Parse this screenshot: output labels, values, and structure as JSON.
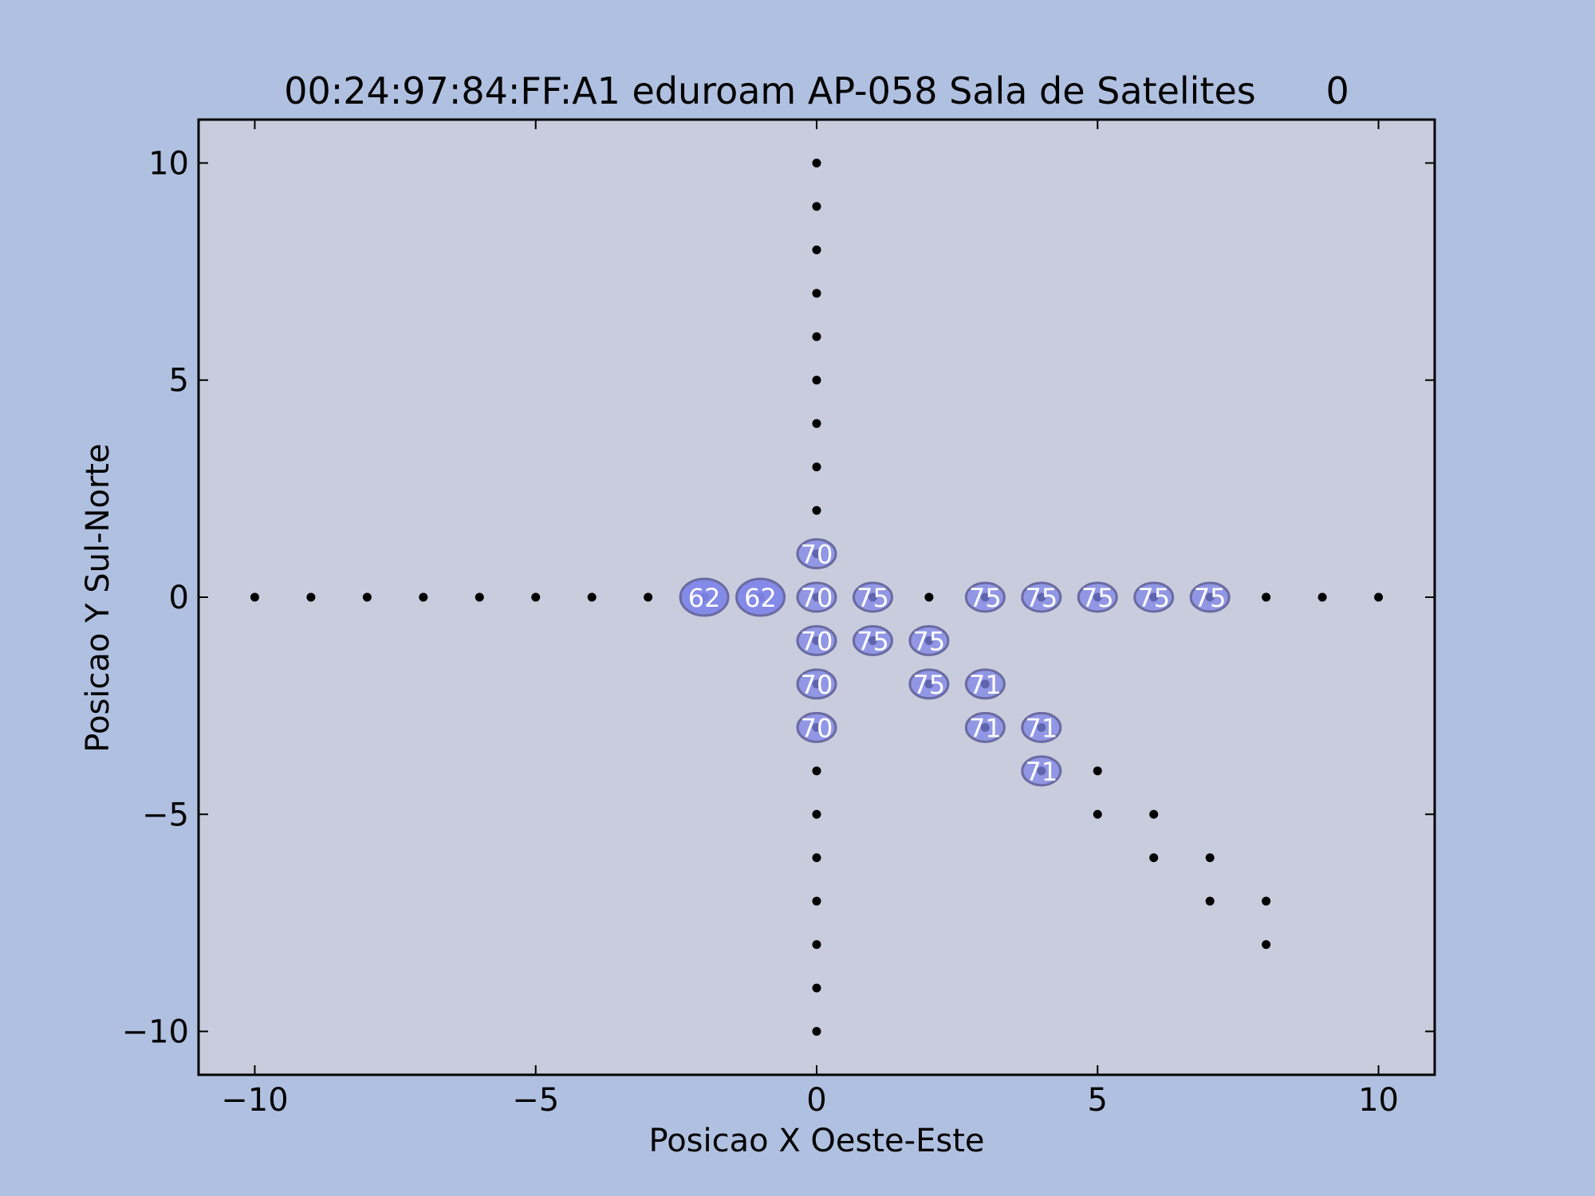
{
  "chart_data": {
    "type": "scatter",
    "title": "00:24:97:84:FF:A1 eduroam AP-058 Sala de Satelites      0",
    "xlabel": "Posicao X Oeste-Este",
    "ylabel": "Posicao Y Sul-Norte",
    "xlim": [
      -11,
      11
    ],
    "ylim": [
      -11,
      11
    ],
    "xticks": [
      -10,
      -5,
      0,
      5,
      10
    ],
    "yticks": [
      -10,
      -5,
      0,
      5,
      10
    ],
    "grid": false,
    "colors": {
      "figure_bg": "#b0c0e0",
      "axes_bg": "#c8ccdc",
      "point": "#000000",
      "bubble_fill": "#7f86e8",
      "bubble_edge": "#6a6aa0",
      "label": "#ffffff"
    },
    "points": [
      [
        -10,
        0
      ],
      [
        -9,
        0
      ],
      [
        -8,
        0
      ],
      [
        -7,
        0
      ],
      [
        -6,
        0
      ],
      [
        -5,
        0
      ],
      [
        -4,
        0
      ],
      [
        -3,
        0
      ],
      [
        -2,
        0
      ],
      [
        -1,
        0
      ],
      [
        0,
        0
      ],
      [
        1,
        0
      ],
      [
        2,
        0
      ],
      [
        3,
        0
      ],
      [
        4,
        0
      ],
      [
        5,
        0
      ],
      [
        6,
        0
      ],
      [
        7,
        0
      ],
      [
        8,
        0
      ],
      [
        9,
        0
      ],
      [
        10,
        0
      ],
      [
        0,
        10
      ],
      [
        0,
        9
      ],
      [
        0,
        8
      ],
      [
        0,
        7
      ],
      [
        0,
        6
      ],
      [
        0,
        5
      ],
      [
        0,
        4
      ],
      [
        0,
        3
      ],
      [
        0,
        2
      ],
      [
        0,
        1
      ],
      [
        0,
        -1
      ],
      [
        0,
        -2
      ],
      [
        0,
        -3
      ],
      [
        0,
        -4
      ],
      [
        0,
        -5
      ],
      [
        0,
        -6
      ],
      [
        0,
        -7
      ],
      [
        0,
        -8
      ],
      [
        0,
        -9
      ],
      [
        0,
        -10
      ],
      [
        1,
        -1
      ],
      [
        2,
        -1
      ],
      [
        2,
        -2
      ],
      [
        3,
        -2
      ],
      [
        3,
        -3
      ],
      [
        4,
        -3
      ],
      [
        4,
        -4
      ],
      [
        5,
        -4
      ],
      [
        5,
        -5
      ],
      [
        6,
        -5
      ],
      [
        6,
        -6
      ],
      [
        7,
        -6
      ],
      [
        7,
        -7
      ],
      [
        8,
        -7
      ],
      [
        8,
        -8
      ]
    ],
    "measurements": [
      {
        "x": -2,
        "y": 0,
        "label": "62"
      },
      {
        "x": -1,
        "y": 0,
        "label": "62"
      },
      {
        "x": 0,
        "y": 1,
        "label": "70"
      },
      {
        "x": 0,
        "y": 0,
        "label": "70"
      },
      {
        "x": 0,
        "y": -1,
        "label": "70"
      },
      {
        "x": 0,
        "y": -2,
        "label": "70"
      },
      {
        "x": 0,
        "y": -3,
        "label": "70"
      },
      {
        "x": 1,
        "y": 0,
        "label": "75"
      },
      {
        "x": 3,
        "y": 0,
        "label": "75"
      },
      {
        "x": 4,
        "y": 0,
        "label": "75"
      },
      {
        "x": 5,
        "y": 0,
        "label": "75"
      },
      {
        "x": 6,
        "y": 0,
        "label": "75"
      },
      {
        "x": 7,
        "y": 0,
        "label": "75"
      },
      {
        "x": 1,
        "y": -1,
        "label": "75"
      },
      {
        "x": 2,
        "y": -1,
        "label": "75"
      },
      {
        "x": 2,
        "y": -2,
        "label": "75"
      },
      {
        "x": 3,
        "y": -2,
        "label": "71"
      },
      {
        "x": 3,
        "y": -3,
        "label": "71"
      },
      {
        "x": 4,
        "y": -3,
        "label": "71"
      },
      {
        "x": 4,
        "y": -4,
        "label": "71"
      }
    ]
  }
}
